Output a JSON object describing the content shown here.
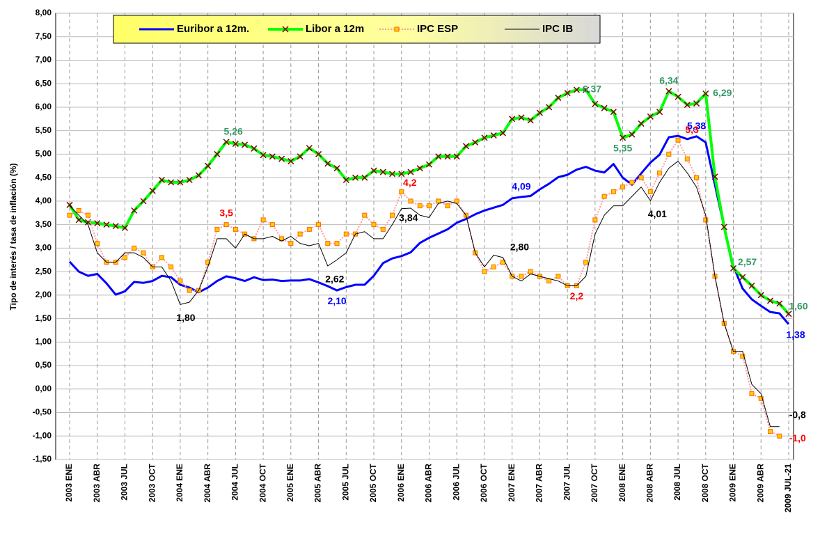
{
  "chart_data": {
    "type": "line",
    "y_axis_label": "Tipo de interés / tasa de inflación (%)",
    "categories": [
      "2003 ENE",
      null,
      null,
      "2003 ABR",
      null,
      null,
      "2003 JUL",
      null,
      null,
      "2003 OCT",
      null,
      null,
      "2004 ENE",
      null,
      null,
      "2004 ABR",
      null,
      null,
      "2004 JUL",
      null,
      null,
      "2004 OCT",
      null,
      null,
      "2005 ENE",
      null,
      null,
      "2005 ABR",
      null,
      null,
      "2005 JUL",
      null,
      null,
      "2005 OCT",
      null,
      null,
      "2006 ENE",
      null,
      null,
      "2006 ABR",
      null,
      null,
      "2006 JUL",
      null,
      null,
      "2006 OCT",
      null,
      null,
      "2007 ENE",
      null,
      null,
      "2007 ABR",
      null,
      null,
      "2007 JUL",
      null,
      null,
      "2007 OCT",
      null,
      null,
      "2008 ENE",
      null,
      null,
      "2008 ABR",
      null,
      null,
      "2008 JUL",
      null,
      null,
      "2008 OCT",
      null,
      null,
      "2009 ENE",
      null,
      null,
      "2009 ABR",
      null,
      null,
      "2009 JUL-21"
    ],
    "series": [
      {
        "name": "Euribor a 12m.",
        "color": "#0000ff",
        "label_color": "#0000ff",
        "values": [
          2.71,
          2.5,
          2.41,
          2.45,
          2.25,
          2.01,
          2.08,
          2.28,
          2.26,
          2.3,
          2.41,
          2.38,
          2.22,
          2.16,
          2.06,
          2.16,
          2.3,
          2.4,
          2.36,
          2.3,
          2.38,
          2.32,
          2.33,
          2.3,
          2.31,
          2.31,
          2.34,
          2.27,
          2.19,
          2.1,
          2.17,
          2.22,
          2.22,
          2.41,
          2.68,
          2.78,
          2.83,
          2.91,
          3.11,
          3.22,
          3.31,
          3.4,
          3.54,
          3.62,
          3.72,
          3.8,
          3.86,
          3.92,
          4.06,
          4.09,
          4.11,
          4.25,
          4.37,
          4.51,
          4.56,
          4.67,
          4.73,
          4.65,
          4.61,
          4.79,
          4.5,
          4.35,
          4.59,
          4.82,
          4.99,
          5.36,
          5.39,
          5.32,
          5.38,
          5.25,
          4.35,
          3.45,
          2.62,
          2.14,
          1.91,
          1.77,
          1.64,
          1.61,
          1.38
        ],
        "value_labels": [
          null,
          null,
          null,
          null,
          null,
          null,
          null,
          null,
          null,
          null,
          null,
          null,
          null,
          null,
          null,
          null,
          null,
          null,
          null,
          null,
          null,
          null,
          null,
          null,
          null,
          null,
          null,
          null,
          null,
          "2,10",
          null,
          null,
          null,
          null,
          null,
          null,
          null,
          null,
          null,
          null,
          null,
          null,
          null,
          null,
          null,
          null,
          null,
          null,
          null,
          "4,09",
          null,
          null,
          null,
          null,
          null,
          null,
          null,
          null,
          null,
          null,
          null,
          null,
          null,
          null,
          null,
          null,
          null,
          null,
          "5,38",
          null,
          null,
          null,
          null,
          null,
          null,
          null,
          null,
          null,
          "1,38"
        ]
      },
      {
        "name": "Libor a 12m",
        "color": "#00ff00",
        "marker_color": "#800000",
        "label_color": "#339966",
        "values": [
          3.92,
          3.6,
          3.55,
          3.53,
          3.5,
          3.47,
          3.43,
          3.8,
          4.0,
          4.22,
          4.45,
          4.4,
          4.4,
          4.45,
          4.55,
          4.75,
          5.0,
          5.26,
          5.22,
          5.2,
          5.12,
          4.98,
          4.95,
          4.9,
          4.85,
          4.95,
          5.13,
          5.0,
          4.8,
          4.7,
          4.45,
          4.5,
          4.5,
          4.65,
          4.62,
          4.58,
          4.58,
          4.62,
          4.7,
          4.78,
          4.95,
          4.95,
          4.95,
          5.17,
          5.25,
          5.35,
          5.4,
          5.45,
          5.75,
          5.78,
          5.72,
          5.88,
          6.0,
          6.2,
          6.3,
          6.37,
          6.37,
          6.07,
          5.98,
          5.9,
          5.35,
          5.42,
          5.65,
          5.8,
          5.9,
          6.34,
          6.22,
          6.05,
          6.08,
          6.29,
          4.52,
          3.45,
          2.57,
          2.38,
          2.2,
          2.0,
          1.88,
          1.82,
          1.6
        ],
        "value_labels": [
          null,
          null,
          null,
          null,
          null,
          null,
          null,
          null,
          null,
          null,
          null,
          null,
          null,
          null,
          null,
          null,
          null,
          "5,26",
          null,
          null,
          null,
          null,
          null,
          null,
          null,
          null,
          null,
          null,
          null,
          null,
          null,
          null,
          null,
          null,
          null,
          null,
          null,
          null,
          null,
          null,
          null,
          null,
          null,
          null,
          null,
          null,
          null,
          null,
          null,
          null,
          null,
          null,
          null,
          null,
          null,
          "6,37",
          null,
          null,
          null,
          null,
          "5,35",
          null,
          null,
          null,
          null,
          "6,34",
          null,
          null,
          null,
          "6,29",
          null,
          null,
          "2,57",
          null,
          null,
          null,
          null,
          null,
          "1,60"
        ]
      },
      {
        "name": "IPC ESP",
        "color": "#ff9999",
        "marker_color": "#ffcc00",
        "label_color": "#ff0000",
        "values": [
          3.7,
          3.8,
          3.7,
          3.1,
          2.7,
          2.7,
          2.8,
          3.0,
          2.9,
          2.6,
          2.8,
          2.6,
          2.3,
          2.1,
          2.1,
          2.7,
          3.4,
          3.5,
          3.4,
          3.3,
          3.2,
          3.6,
          3.5,
          3.2,
          3.1,
          3.3,
          3.4,
          3.5,
          3.1,
          3.1,
          3.3,
          3.3,
          3.7,
          3.5,
          3.4,
          3.7,
          4.2,
          4.0,
          3.9,
          3.9,
          4.0,
          3.9,
          4.0,
          3.7,
          2.9,
          2.5,
          2.6,
          2.7,
          2.4,
          2.4,
          2.5,
          2.4,
          2.3,
          2.4,
          2.2,
          2.2,
          2.7,
          3.6,
          4.1,
          4.2,
          4.3,
          4.4,
          4.5,
          4.2,
          4.6,
          5.0,
          5.3,
          4.9,
          4.5,
          3.6,
          2.4,
          1.4,
          0.8,
          0.7,
          -0.1,
          -0.2,
          -0.9,
          -1.0,
          null
        ],
        "value_labels": [
          null,
          null,
          null,
          null,
          null,
          null,
          null,
          null,
          null,
          null,
          null,
          null,
          null,
          null,
          null,
          null,
          null,
          "3,5",
          null,
          null,
          null,
          null,
          null,
          null,
          null,
          null,
          null,
          null,
          null,
          null,
          null,
          null,
          null,
          null,
          null,
          null,
          "4,2",
          null,
          null,
          null,
          null,
          null,
          null,
          null,
          null,
          null,
          null,
          null,
          null,
          null,
          null,
          null,
          null,
          null,
          null,
          "2,2",
          null,
          null,
          null,
          null,
          null,
          null,
          null,
          null,
          null,
          null,
          "5,3",
          null,
          null,
          null,
          null,
          null,
          null,
          null,
          null,
          null,
          null,
          "-1,0",
          null
        ]
      },
      {
        "name": "IPC IB",
        "color": "#000000",
        "label_color": "#000000",
        "values": [
          3.9,
          3.7,
          3.5,
          2.9,
          2.7,
          2.7,
          2.9,
          2.9,
          2.8,
          2.6,
          2.6,
          2.3,
          1.8,
          1.85,
          2.1,
          2.6,
          3.2,
          3.2,
          3.0,
          3.3,
          3.2,
          3.2,
          3.25,
          3.15,
          3.25,
          3.1,
          3.05,
          3.1,
          2.62,
          2.75,
          2.9,
          3.3,
          3.35,
          3.2,
          3.2,
          3.5,
          3.84,
          3.85,
          3.7,
          3.65,
          3.95,
          4.0,
          3.95,
          3.7,
          2.9,
          2.6,
          2.85,
          2.8,
          2.4,
          2.3,
          2.45,
          2.4,
          2.35,
          2.3,
          2.2,
          2.2,
          2.4,
          3.3,
          3.7,
          3.9,
          3.9,
          4.1,
          4.3,
          4.01,
          4.4,
          4.7,
          4.85,
          4.6,
          4.3,
          3.7,
          2.4,
          1.4,
          0.8,
          0.8,
          0.1,
          -0.1,
          -0.8,
          -0.8,
          null
        ],
        "value_labels": [
          null,
          null,
          null,
          null,
          null,
          null,
          null,
          null,
          null,
          null,
          null,
          null,
          "1,80",
          null,
          null,
          null,
          null,
          null,
          null,
          null,
          null,
          null,
          null,
          null,
          null,
          null,
          null,
          null,
          "2,62",
          null,
          null,
          null,
          null,
          null,
          null,
          null,
          "3,84",
          null,
          null,
          null,
          null,
          null,
          null,
          null,
          null,
          null,
          null,
          "2,80",
          null,
          null,
          null,
          null,
          null,
          null,
          null,
          null,
          null,
          null,
          null,
          null,
          null,
          null,
          null,
          "4,01",
          null,
          null,
          null,
          null,
          null,
          null,
          null,
          null,
          null,
          null,
          null,
          null,
          null,
          "-0,8",
          null
        ]
      }
    ],
    "ylim": [
      -1.5,
      8
    ],
    "yticks": [
      {
        "value": -1.5,
        "label": "-1,50"
      },
      {
        "value": -1,
        "label": "-1,00"
      },
      {
        "value": -0.5,
        "label": "-0,50"
      },
      {
        "value": 0,
        "label": "0,00"
      },
      {
        "value": 0.5,
        "label": "0,50"
      },
      {
        "value": 1,
        "label": "1,00"
      },
      {
        "value": 1.5,
        "label": "1,50"
      },
      {
        "value": 2,
        "label": "2,00"
      },
      {
        "value": 2.5,
        "label": "2,50"
      },
      {
        "value": 3,
        "label": "3,00"
      },
      {
        "value": 3.5,
        "label": "3,50"
      },
      {
        "value": 4,
        "label": "4,00"
      },
      {
        "value": 4.5,
        "label": "4,50"
      },
      {
        "value": 5,
        "label": "5,00"
      },
      {
        "value": 5.5,
        "label": "5,50"
      },
      {
        "value": 6,
        "label": "6,00"
      },
      {
        "value": 6.5,
        "label": "6,50"
      },
      {
        "value": 7,
        "label": "7,00"
      },
      {
        "value": 7.5,
        "label": "7,50"
      },
      {
        "value": 8,
        "label": "8,00"
      }
    ],
    "grid": true,
    "legend": "top"
  }
}
